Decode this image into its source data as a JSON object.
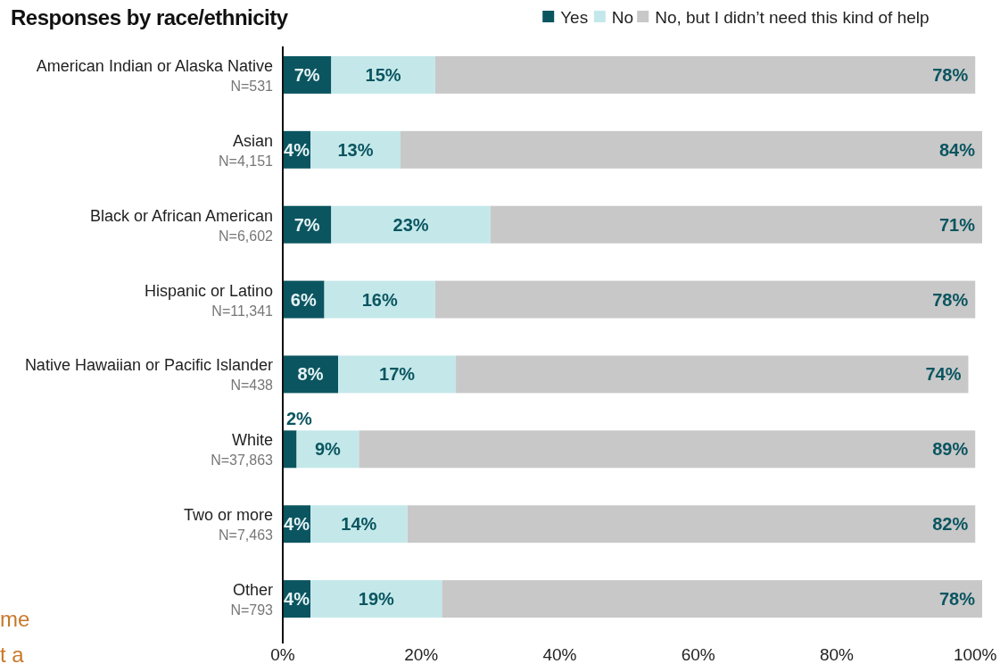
{
  "chart_data": {
    "type": "bar",
    "orientation": "horizontal",
    "stacked": true,
    "title": "Responses by race/ethnicity",
    "categories": [
      "American Indian or Alaska Native\nN=531",
      "Asian\nN=4,151",
      "Black or African American\nN=6,602",
      "Hispanic or Latino\nN=11,341",
      "Native Hawaiian or Pacific Islander\nN=438",
      "White\nN=37,863",
      "Two or more\nN=7,463",
      "Other\nN=793"
    ],
    "series": [
      {
        "name": "Yes",
        "color": "#0b5560",
        "values": [
          7,
          4,
          7,
          6,
          8,
          2,
          4,
          4
        ],
        "value_labels": [
          "7%",
          "4%",
          "7%",
          "6%",
          "8%",
          "2%",
          "4%",
          "4%"
        ]
      },
      {
        "name": "No",
        "color": "#c4e8ea",
        "values": [
          15,
          13,
          23,
          16,
          17,
          9,
          14,
          19
        ],
        "value_labels": [
          "15%",
          "13%",
          "23%",
          "16%",
          "17%",
          "9%",
          "14%",
          "19%"
        ]
      },
      {
        "name": "No, but I didn’t need this kind of help",
        "color": "#c8c8c8",
        "values": [
          78,
          84,
          71,
          78,
          74,
          89,
          82,
          78
        ],
        "value_labels": [
          "78%",
          "84%",
          "71%",
          "78%",
          "74%",
          "89%",
          "82%",
          "78%"
        ]
      }
    ],
    "xlim": [
      0,
      101
    ],
    "xticks": [
      {
        "value": 0,
        "label": "0%"
      },
      {
        "value": 20,
        "label": "20%"
      },
      {
        "value": 40,
        "label": "40%"
      },
      {
        "value": 60,
        "label": "60%"
      },
      {
        "value": 80,
        "label": "80%"
      },
      {
        "value": 100,
        "label": "100%"
      }
    ],
    "legend": "top right",
    "grid": false,
    "annotations": [
      "me",
      "t a"
    ]
  }
}
